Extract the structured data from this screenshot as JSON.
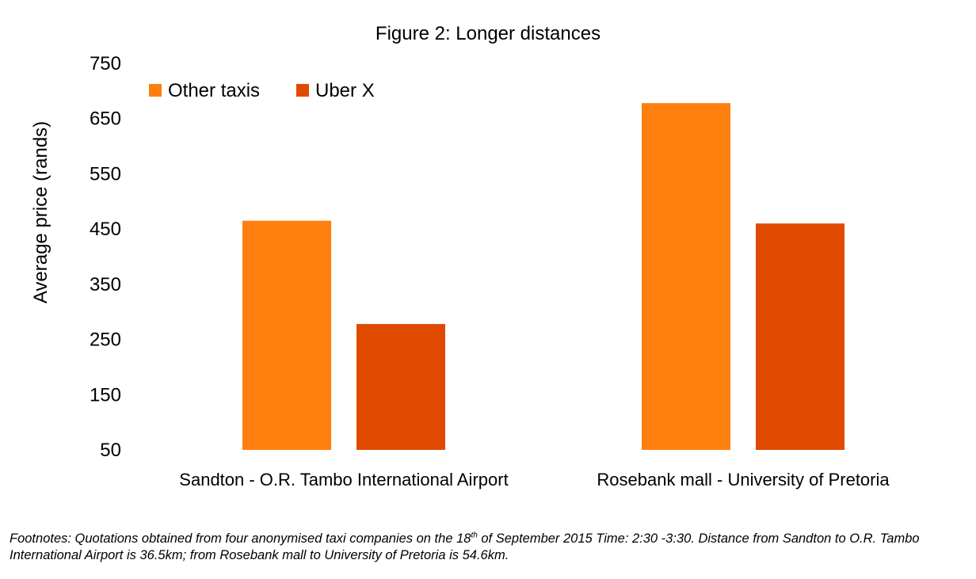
{
  "chart_data": {
    "type": "bar",
    "title": "Figure 2: Longer distances",
    "ylabel": "Average price (rands)",
    "xlabel": "",
    "ylim": [
      50,
      750
    ],
    "yticks": [
      50,
      150,
      250,
      350,
      450,
      550,
      650,
      750
    ],
    "categories": [
      "Sandton - O.R. Tambo International Airport",
      "Rosebank mall - University of Pretoria"
    ],
    "series": [
      {
        "name": "Other taxis",
        "color": "#FF7F0E",
        "values": [
          465,
          678
        ]
      },
      {
        "name": "Uber X",
        "color": "#E04A00",
        "values": [
          278,
          460
        ]
      }
    ],
    "legend_position": "top-left",
    "grid": false
  },
  "footnote": {
    "part1": "Footnotes: Quotations obtained from four anonymised taxi companies on the 18",
    "sup": "th",
    "part2": " of September 2015 Time: 2:30 -3:30. Distance from Sandton to O.R. Tambo International Airport is 36.5km; from Rosebank mall to University of Pretoria is 54.6km."
  }
}
